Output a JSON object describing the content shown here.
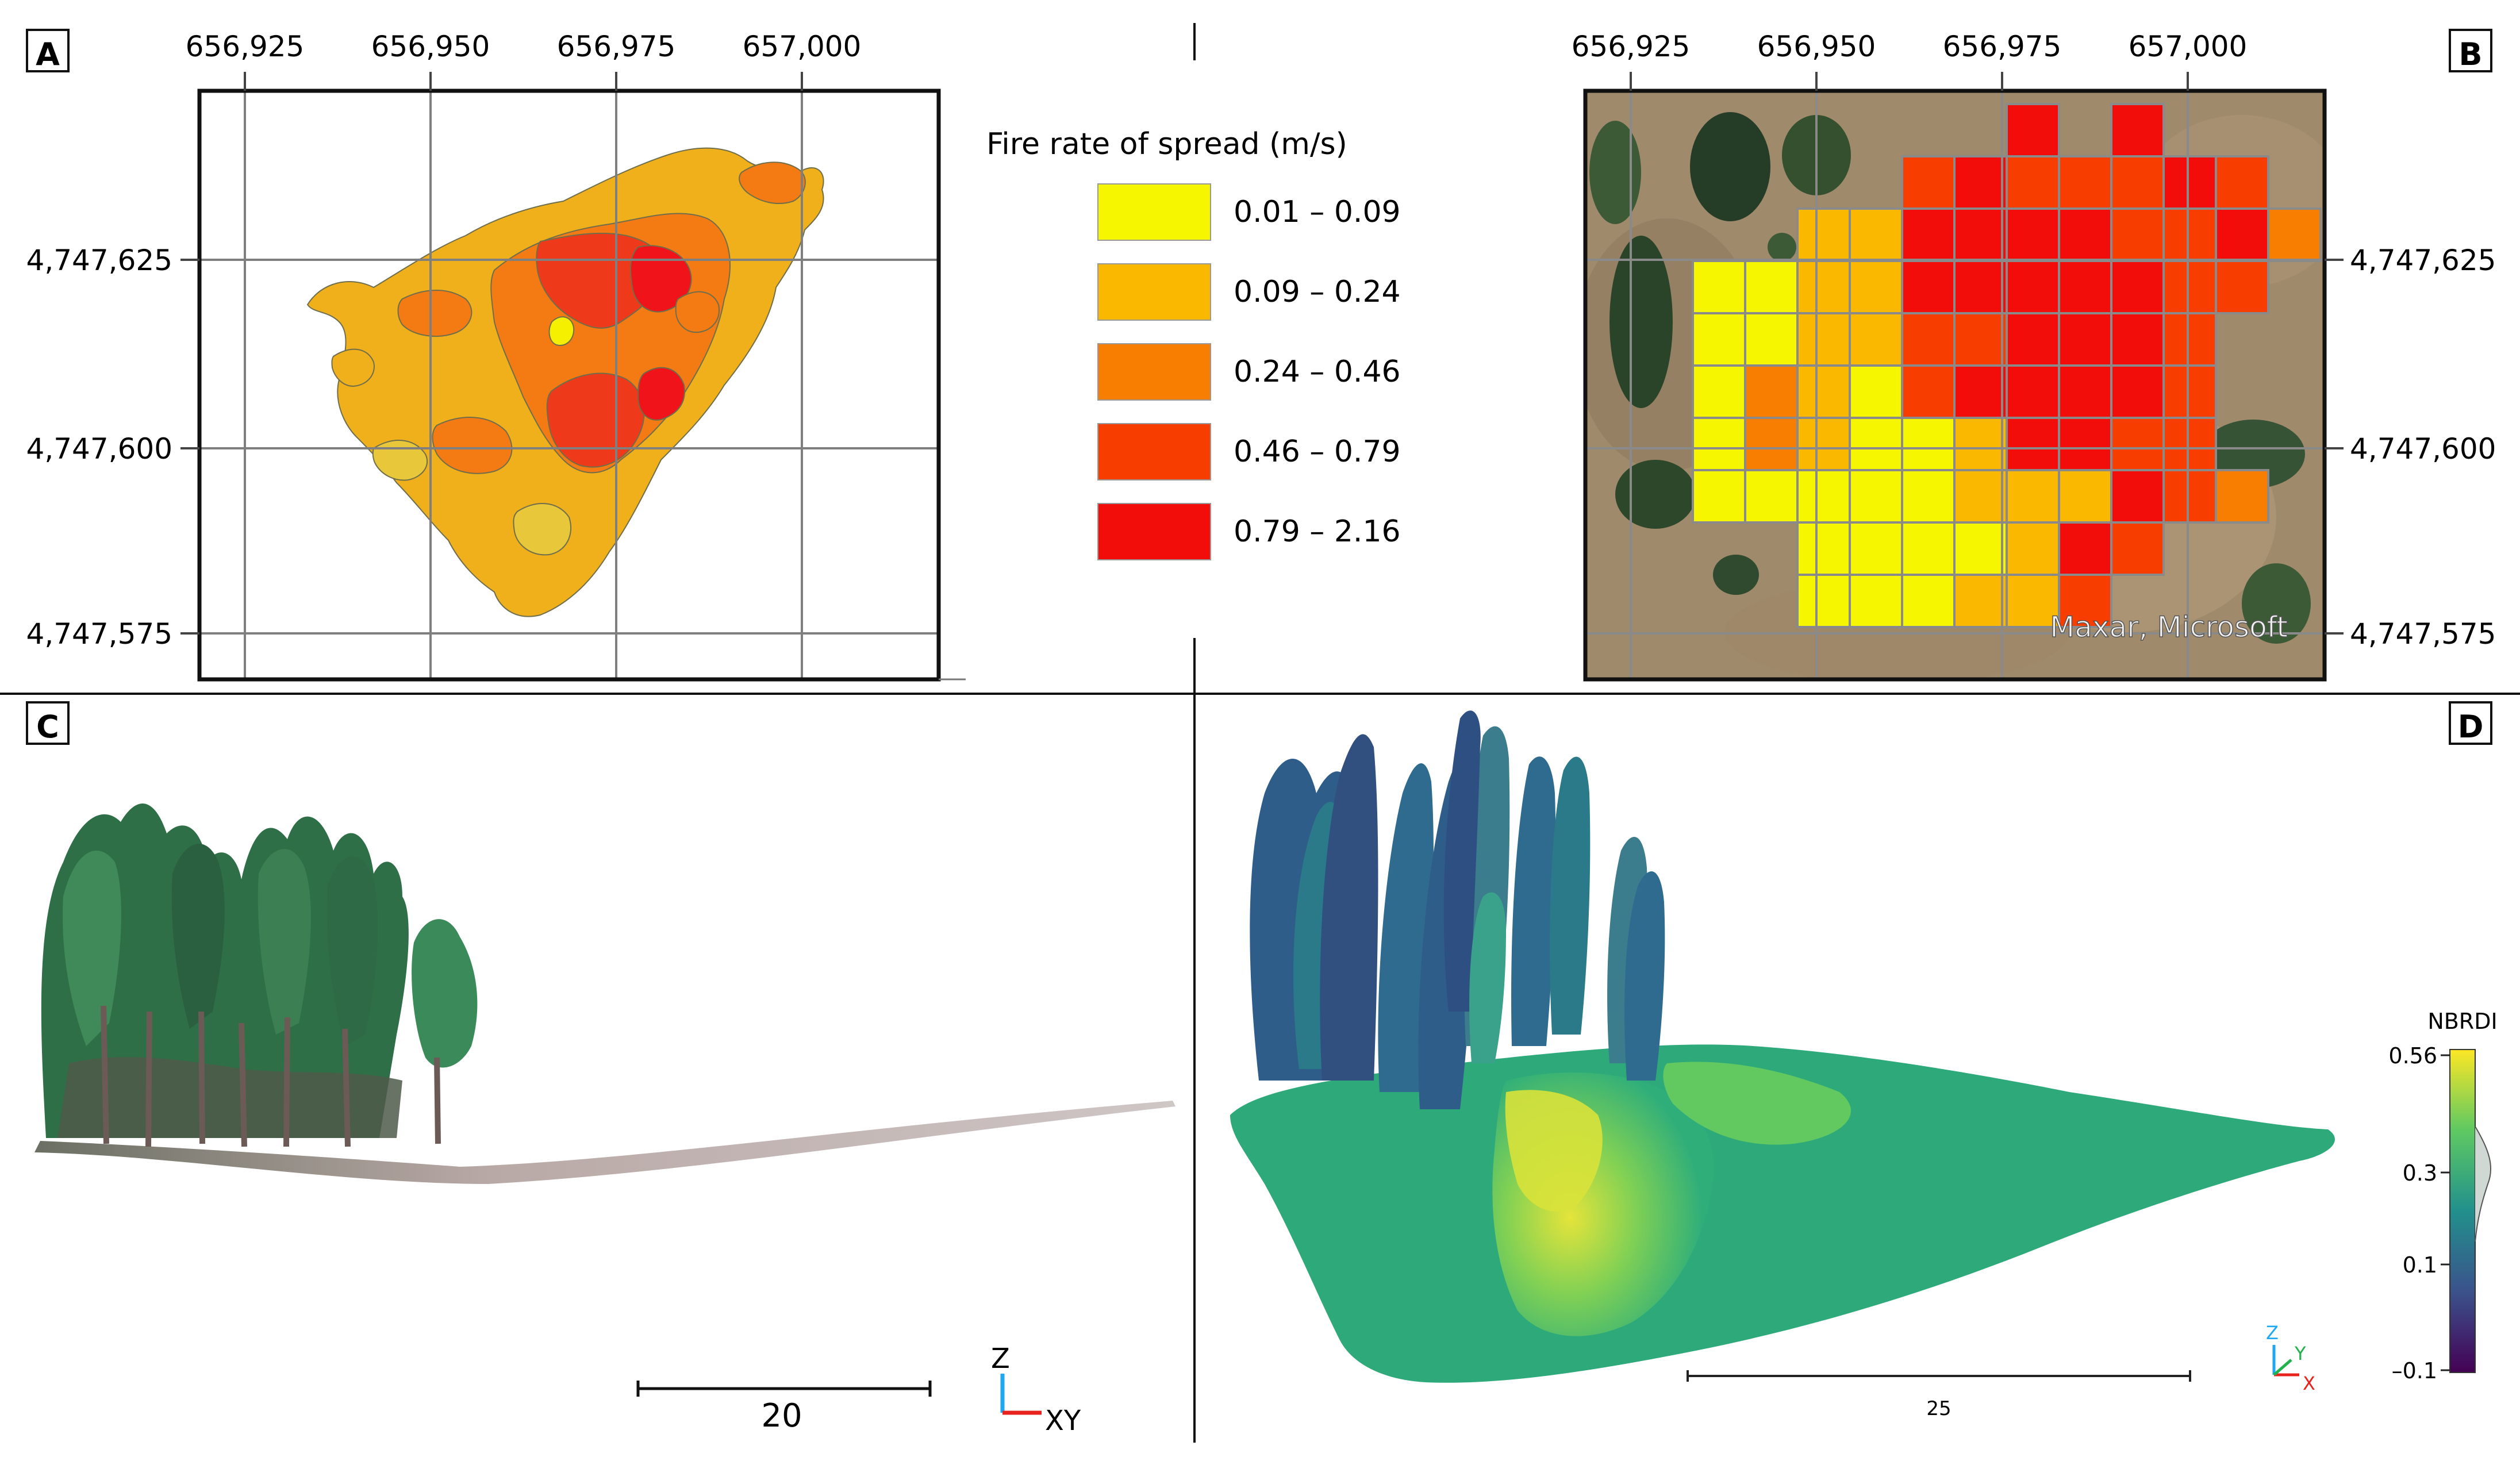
{
  "panels": {
    "a": {
      "label": "A"
    },
    "b": {
      "label": "B",
      "attribution": "Maxar, Microsoft"
    },
    "c": {
      "label": "C",
      "scale_label": "20",
      "axis_z": "Z",
      "axis_xy": "XY"
    },
    "d": {
      "label": "D",
      "scale_label": "25",
      "axis_z": "Z",
      "axis_y": "Y",
      "axis_x": "X"
    }
  },
  "map_axes": {
    "easting_ticks": [
      "656,925",
      "656,950",
      "656,975",
      "657,000"
    ],
    "northing_ticks": [
      "4,747,625",
      "4,747,600",
      "4,747,575"
    ]
  },
  "legend": {
    "title": "Fire rate of spread (m/s)",
    "classes": [
      {
        "range": "0.01 – 0.09",
        "color": "#f6f600"
      },
      {
        "range": "0.09 – 0.24",
        "color": "#fbb800"
      },
      {
        "range": "0.24 – 0.46",
        "color": "#f77e00"
      },
      {
        "range": "0.46 – 0.79",
        "color": "#f73e00"
      },
      {
        "range": "0.79 – 2.16",
        "color": "#f20d0a"
      }
    ]
  },
  "colorbar": {
    "title": "NBRDI",
    "ticks": [
      "0.56",
      "0.3",
      "0.1",
      "–0.1"
    ]
  },
  "grid_b": [
    "......4.4..",
    "....3433343",
    "..1144443342",
    "00114444433",
    "0011334443",
    "0210344443",
    "0210014433",
    "00000111432",
    "..0000143",
    "..000113"
  ]
}
